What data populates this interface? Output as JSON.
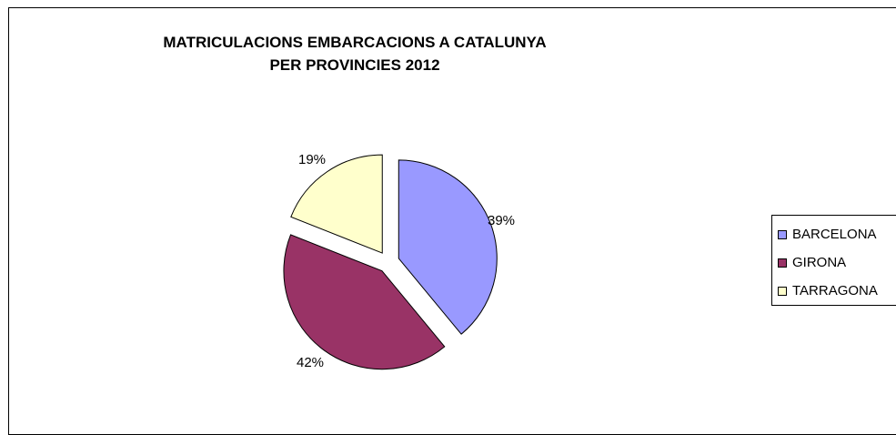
{
  "chart_data": {
    "type": "pie",
    "title": [
      "MATRICULACIONS EMBARCACIONS A CATALUNYA",
      "PER PROVINCIES 2012"
    ],
    "slices": [
      {
        "label": "BARCELONA",
        "value": 39,
        "value_label": "39%",
        "color": "#9999ff"
      },
      {
        "label": "GIRONA",
        "value": 42,
        "value_label": "42%",
        "color": "#993366"
      },
      {
        "label": "TARRAGONA",
        "value": 19,
        "value_label": "19%",
        "color": "#ffffcc"
      }
    ],
    "exploded": true,
    "legend_position": "right"
  }
}
